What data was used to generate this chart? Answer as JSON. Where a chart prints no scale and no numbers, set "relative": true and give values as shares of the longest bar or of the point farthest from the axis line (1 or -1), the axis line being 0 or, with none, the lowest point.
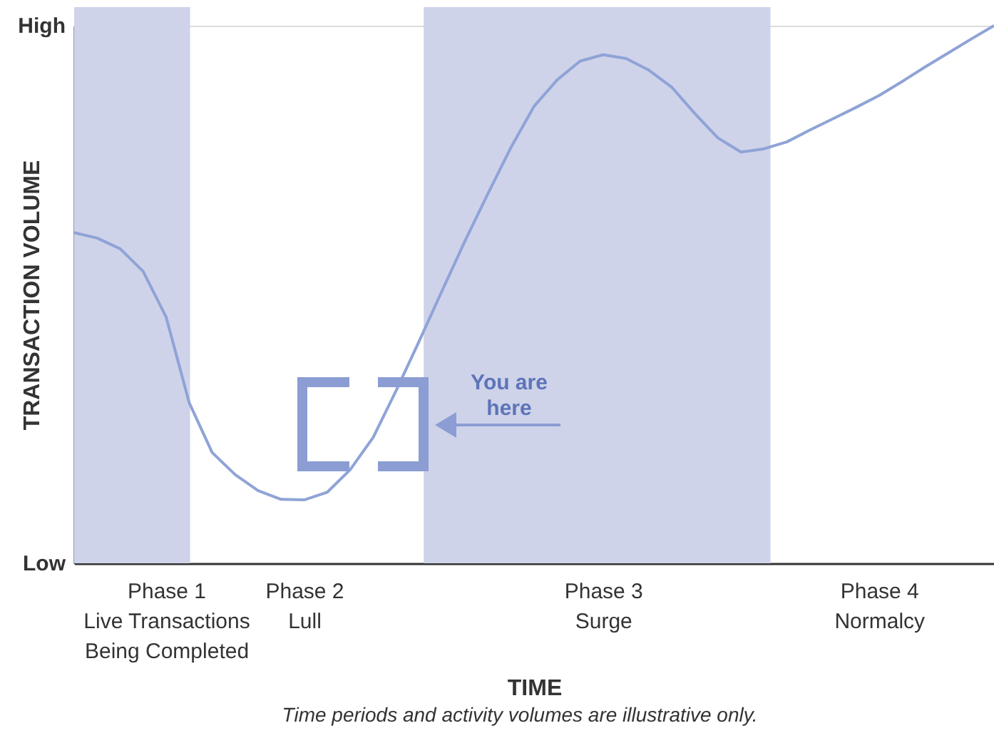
{
  "chart_data": {
    "type": "line",
    "relative": true,
    "xlabel": "TIME",
    "ylabel": "TRANSACTION VOLUME",
    "categories": [
      null,
      null,
      null,
      null,
      "Phase 1\nLive Transactions\nBeing Completed",
      null,
      null,
      null,
      null,
      null,
      "Phase 2\nLull",
      null,
      null,
      null,
      null,
      null,
      null,
      null,
      null,
      null,
      null,
      null,
      null,
      "Phase 3\nSurge",
      null,
      null,
      null,
      null,
      null,
      null,
      null,
      null,
      null,
      null,
      null,
      "Phase 4\nNormalcy",
      null,
      null,
      null,
      null,
      null
    ],
    "series": [
      {
        "color": "#8fa3d6",
        "values": [
          0.615,
          0.605,
          0.585,
          0.543,
          0.458,
          0.299,
          0.206,
          0.165,
          0.135,
          0.119,
          0.118,
          0.132,
          0.174,
          0.234,
          0.321,
          0.413,
          0.507,
          0.6,
          0.688,
          0.774,
          0.85,
          0.899,
          0.934,
          0.946,
          0.939,
          0.917,
          0.885,
          0.836,
          0.791,
          0.765,
          0.771,
          0.784,
          0.806,
          0.827,
          0.848,
          0.87,
          0.896,
          0.923,
          0.949,
          0.975,
          1.0
        ]
      }
    ],
    "annotations": [
      "High",
      "Low",
      "You are here",
      "Time periods and activity volumes are illustrative only."
    ],
    "grid": false,
    "marker": "none",
    "line_style": "solid"
  }
}
